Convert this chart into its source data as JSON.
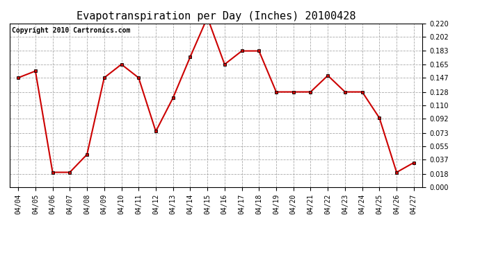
{
  "title": "Evapotranspiration per Day (Inches) 20100428",
  "copyright_text": "Copyright 2010 Cartronics.com",
  "dates": [
    "04/04",
    "04/05",
    "04/06",
    "04/07",
    "04/08",
    "04/09",
    "04/10",
    "04/11",
    "04/12",
    "04/13",
    "04/14",
    "04/15",
    "04/16",
    "04/17",
    "04/18",
    "04/19",
    "04/20",
    "04/21",
    "04/22",
    "04/23",
    "04/24",
    "04/25",
    "04/26",
    "04/27"
  ],
  "values": [
    0.147,
    0.156,
    0.02,
    0.02,
    0.044,
    0.147,
    0.165,
    0.147,
    0.075,
    0.12,
    0.175,
    0.228,
    0.165,
    0.183,
    0.183,
    0.128,
    0.128,
    0.128,
    0.15,
    0.128,
    0.128,
    0.093,
    0.02,
    0.033
  ],
  "ylim": [
    0.0,
    0.22
  ],
  "yticks": [
    0.0,
    0.018,
    0.037,
    0.055,
    0.073,
    0.092,
    0.11,
    0.128,
    0.147,
    0.165,
    0.183,
    0.202,
    0.22
  ],
  "line_color": "#cc0000",
  "marker": "s",
  "marker_size": 2.5,
  "bg_color": "#ffffff",
  "grid_color": "#aaaaaa",
  "title_fontsize": 11,
  "copyright_fontsize": 7,
  "tick_fontsize": 7,
  "figwidth": 6.9,
  "figheight": 3.75,
  "dpi": 100
}
